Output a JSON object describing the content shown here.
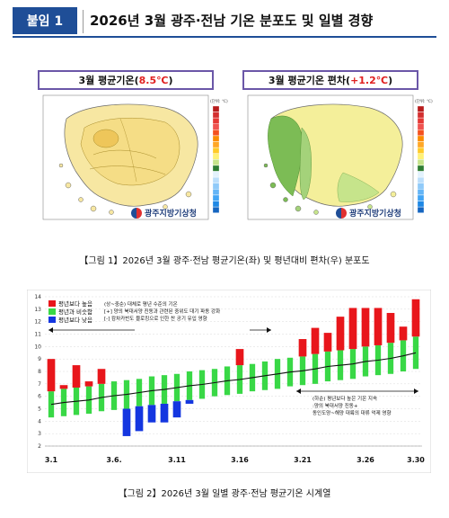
{
  "header": {
    "badge": "붙임 1",
    "title": "2026년 3월 광주·전남 기온 분포도 및 일별 경향"
  },
  "maps": [
    {
      "title_prefix": "3월 평균기온(",
      "title_value": "8.5℃",
      "title_suffix": ")",
      "legend_unit": "(단위: ℃)",
      "legend_colors": [
        "#b71c1c",
        "#d32f2f",
        "#e53935",
        "#ef5350",
        "#f4511e",
        "#fb8c00",
        "#ffa726",
        "#ffca28",
        "#fff176",
        "#c6e48b",
        "#2e7d32",
        "#e3f2fd",
        "#bbdefb",
        "#90caf9",
        "#64b5f6",
        "#42a5f5",
        "#1e88e5",
        "#1565c0"
      ],
      "logo": "광주지방기상청"
    },
    {
      "title_prefix": "3월 평균기온 편차(",
      "title_value": "+1.2℃",
      "title_suffix": ")",
      "legend_unit": "(단위: ℃)",
      "legend_colors": [
        "#b71c1c",
        "#d32f2f",
        "#e53935",
        "#ef5350",
        "#f4511e",
        "#fb8c00",
        "#ffa726",
        "#ffca28",
        "#fff176",
        "#c6e48b",
        "#2e7d32",
        "#e3f2fd",
        "#bbdefb",
        "#90caf9",
        "#64b5f6",
        "#42a5f5",
        "#1e88e5",
        "#1565c0"
      ],
      "logo": "광주지방기상청"
    }
  ],
  "caption1": "【그림 1】2026년 3월 광주·전남 평균기온(좌) 및 평년대비 편차(우) 분포도",
  "caption2": "【그림 2】2026년 3월 일별 광주·전남 평균기온 시계열",
  "chart_data": {
    "type": "bar",
    "ylim": [
      2,
      14
    ],
    "yticks": [
      2,
      3,
      4,
      5,
      6,
      7,
      8,
      9,
      10,
      11,
      12,
      13,
      14
    ],
    "x_labels": [
      "3.1",
      "3.6.",
      "3.11",
      "3.16",
      "3.21",
      "3.26",
      "3.30"
    ],
    "x_label_days": [
      1,
      6,
      11,
      16,
      21,
      26,
      30
    ],
    "legend": [
      {
        "name": "평년보다 높음",
        "color": "#e8161b"
      },
      {
        "name": "평년과 비슷함",
        "color": "#39d846"
      },
      {
        "name": "평년보다 낮음",
        "color": "#1436e0"
      }
    ],
    "normal_lower": [
      4.3,
      4.4,
      4.5,
      4.6,
      4.8,
      4.9,
      5.0,
      5.2,
      5.3,
      5.4,
      5.6,
      5.7,
      5.8,
      6.0,
      6.1,
      6.2,
      6.4,
      6.5,
      6.6,
      6.8,
      6.9,
      7.0,
      7.2,
      7.3,
      7.4,
      7.6,
      7.7,
      7.8,
      8.0,
      8.2
    ],
    "normal_upper": [
      6.4,
      6.6,
      6.7,
      6.8,
      7.0,
      7.2,
      7.3,
      7.4,
      7.6,
      7.7,
      7.8,
      8.0,
      8.1,
      8.2,
      8.4,
      8.5,
      8.6,
      8.8,
      9.0,
      9.1,
      9.2,
      9.4,
      9.6,
      9.7,
      9.8,
      10.0,
      10.1,
      10.3,
      10.5,
      10.8
    ],
    "daily_mean": [
      9.0,
      6.9,
      8.5,
      7.2,
      8.2,
      5.0,
      2.8,
      3.2,
      3.9,
      3.9,
      4.3,
      5.4,
      6.1,
      6.5,
      6.7,
      9.8,
      8.6,
      8.1,
      8.2,
      7.6,
      10.6,
      11.5,
      11.1,
      12.4,
      13.1,
      13.1,
      13.1,
      12.7,
      11.6,
      13.8
    ],
    "annotation_top": [
      "(상~중순) 대체로 평년 수준의 기온",
      "[+] 양의 북대서양 진동과 관련된 중위도 대기 파동 강화",
      "[-] 캄차카반도 블로킹으로 인한 찬 공기 유입 영향"
    ],
    "annotation_bottom": [
      "(하순) 평년보다 높은 기온 지속",
      ":양의 북대서양 진동+",
      "동인도양~해양 대륙의 대류 억제 영향"
    ]
  }
}
